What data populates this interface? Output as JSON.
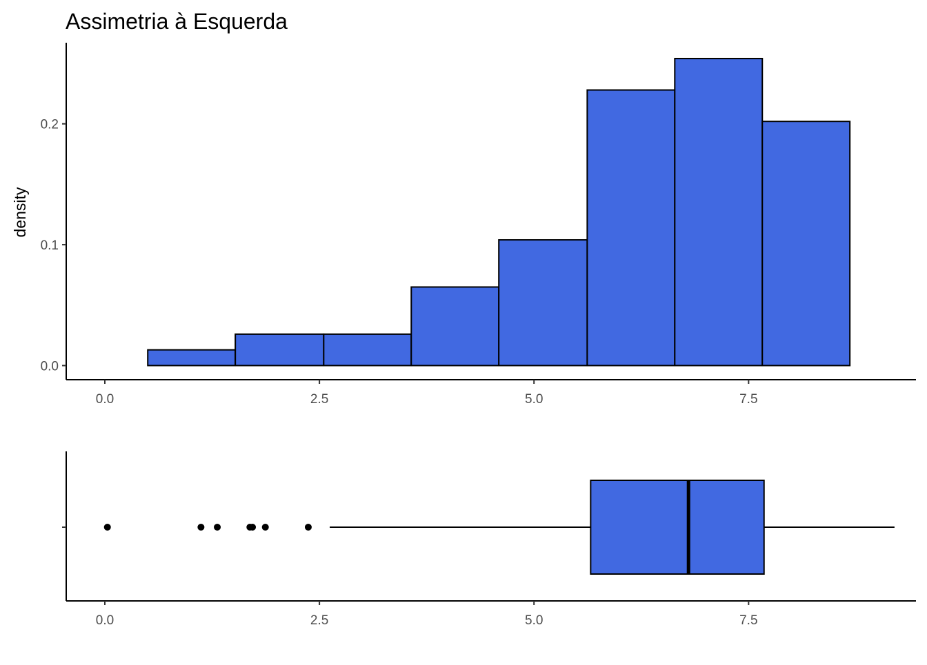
{
  "chart_data": [
    {
      "type": "histogram",
      "title": "Assimetria à Esquerda",
      "xlabel": "",
      "ylabel": "density",
      "xlim": [
        -0.45,
        9.45
      ],
      "ylim": [
        -0.0117,
        0.2671
      ],
      "x_ticks": [
        0.0,
        2.5,
        5.0,
        7.5
      ],
      "x_tick_labels": [
        "0.0",
        "2.5",
        "5.0",
        "7.5"
      ],
      "y_ticks": [
        0.0,
        0.1,
        0.2
      ],
      "y_tick_labels": [
        "0.0",
        "0.1",
        "0.2"
      ],
      "grid": false,
      "fill_color": "#4169E1",
      "outline_color": "#000000",
      "bins": [
        {
          "x0": 0.5,
          "x1": 1.52,
          "density": 0.013
        },
        {
          "x0": 1.52,
          "x1": 2.55,
          "density": 0.026
        },
        {
          "x0": 2.55,
          "x1": 3.57,
          "density": 0.026
        },
        {
          "x0": 3.57,
          "x1": 4.59,
          "density": 0.065
        },
        {
          "x0": 4.59,
          "x1": 5.62,
          "density": 0.104
        },
        {
          "x0": 5.62,
          "x1": 6.64,
          "density": 0.228
        },
        {
          "x0": 6.64,
          "x1": 7.66,
          "density": 0.254
        },
        {
          "x0": 7.66,
          "x1": 8.68,
          "density": 0.202
        }
      ]
    },
    {
      "type": "boxplot",
      "xlabel": "",
      "ylabel": "",
      "xlim": [
        -0.45,
        9.45
      ],
      "x_ticks": [
        0.0,
        2.5,
        5.0,
        7.5
      ],
      "x_tick_labels": [
        "0.0",
        "2.5",
        "5.0",
        "7.5"
      ],
      "grid": false,
      "fill_color": "#4169E1",
      "outline_color": "#000000",
      "whisker_low": 2.62,
      "q1": 5.66,
      "median": 6.8,
      "q3": 7.68,
      "whisker_high": 9.2,
      "outliers": [
        0.03,
        1.12,
        1.31,
        1.69,
        1.72,
        1.87,
        2.37
      ]
    }
  ]
}
